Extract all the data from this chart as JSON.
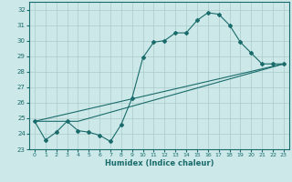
{
  "xlabel": "Humidex (Indice chaleur)",
  "bg_color": "#cce8e8",
  "grid_color": "#aacccc",
  "line_color": "#1a6b6b",
  "xlim": [
    -0.5,
    23.5
  ],
  "ylim": [
    23,
    32.5
  ],
  "yticks": [
    23,
    24,
    25,
    26,
    27,
    28,
    29,
    30,
    31,
    32
  ],
  "xticks": [
    0,
    1,
    2,
    3,
    4,
    5,
    6,
    7,
    8,
    9,
    10,
    11,
    12,
    13,
    14,
    15,
    16,
    17,
    18,
    19,
    20,
    21,
    22,
    23
  ],
  "line1_x": [
    0,
    1,
    2,
    3,
    4,
    5,
    6,
    7,
    8,
    9,
    10,
    11,
    12,
    13,
    14,
    15,
    16,
    17,
    18,
    19,
    20,
    21,
    22,
    23
  ],
  "line1_y": [
    24.8,
    23.6,
    24.1,
    24.8,
    24.2,
    24.1,
    23.9,
    23.5,
    24.6,
    26.3,
    28.9,
    29.9,
    30.0,
    30.5,
    30.5,
    31.3,
    31.8,
    31.7,
    31.0,
    29.9,
    29.2,
    28.5,
    28.5,
    28.5
  ],
  "line2_x": [
    0,
    23
  ],
  "line2_y": [
    24.8,
    28.5
  ],
  "line3_x": [
    0,
    4,
    23
  ],
  "line3_y": [
    24.8,
    24.8,
    28.5
  ]
}
